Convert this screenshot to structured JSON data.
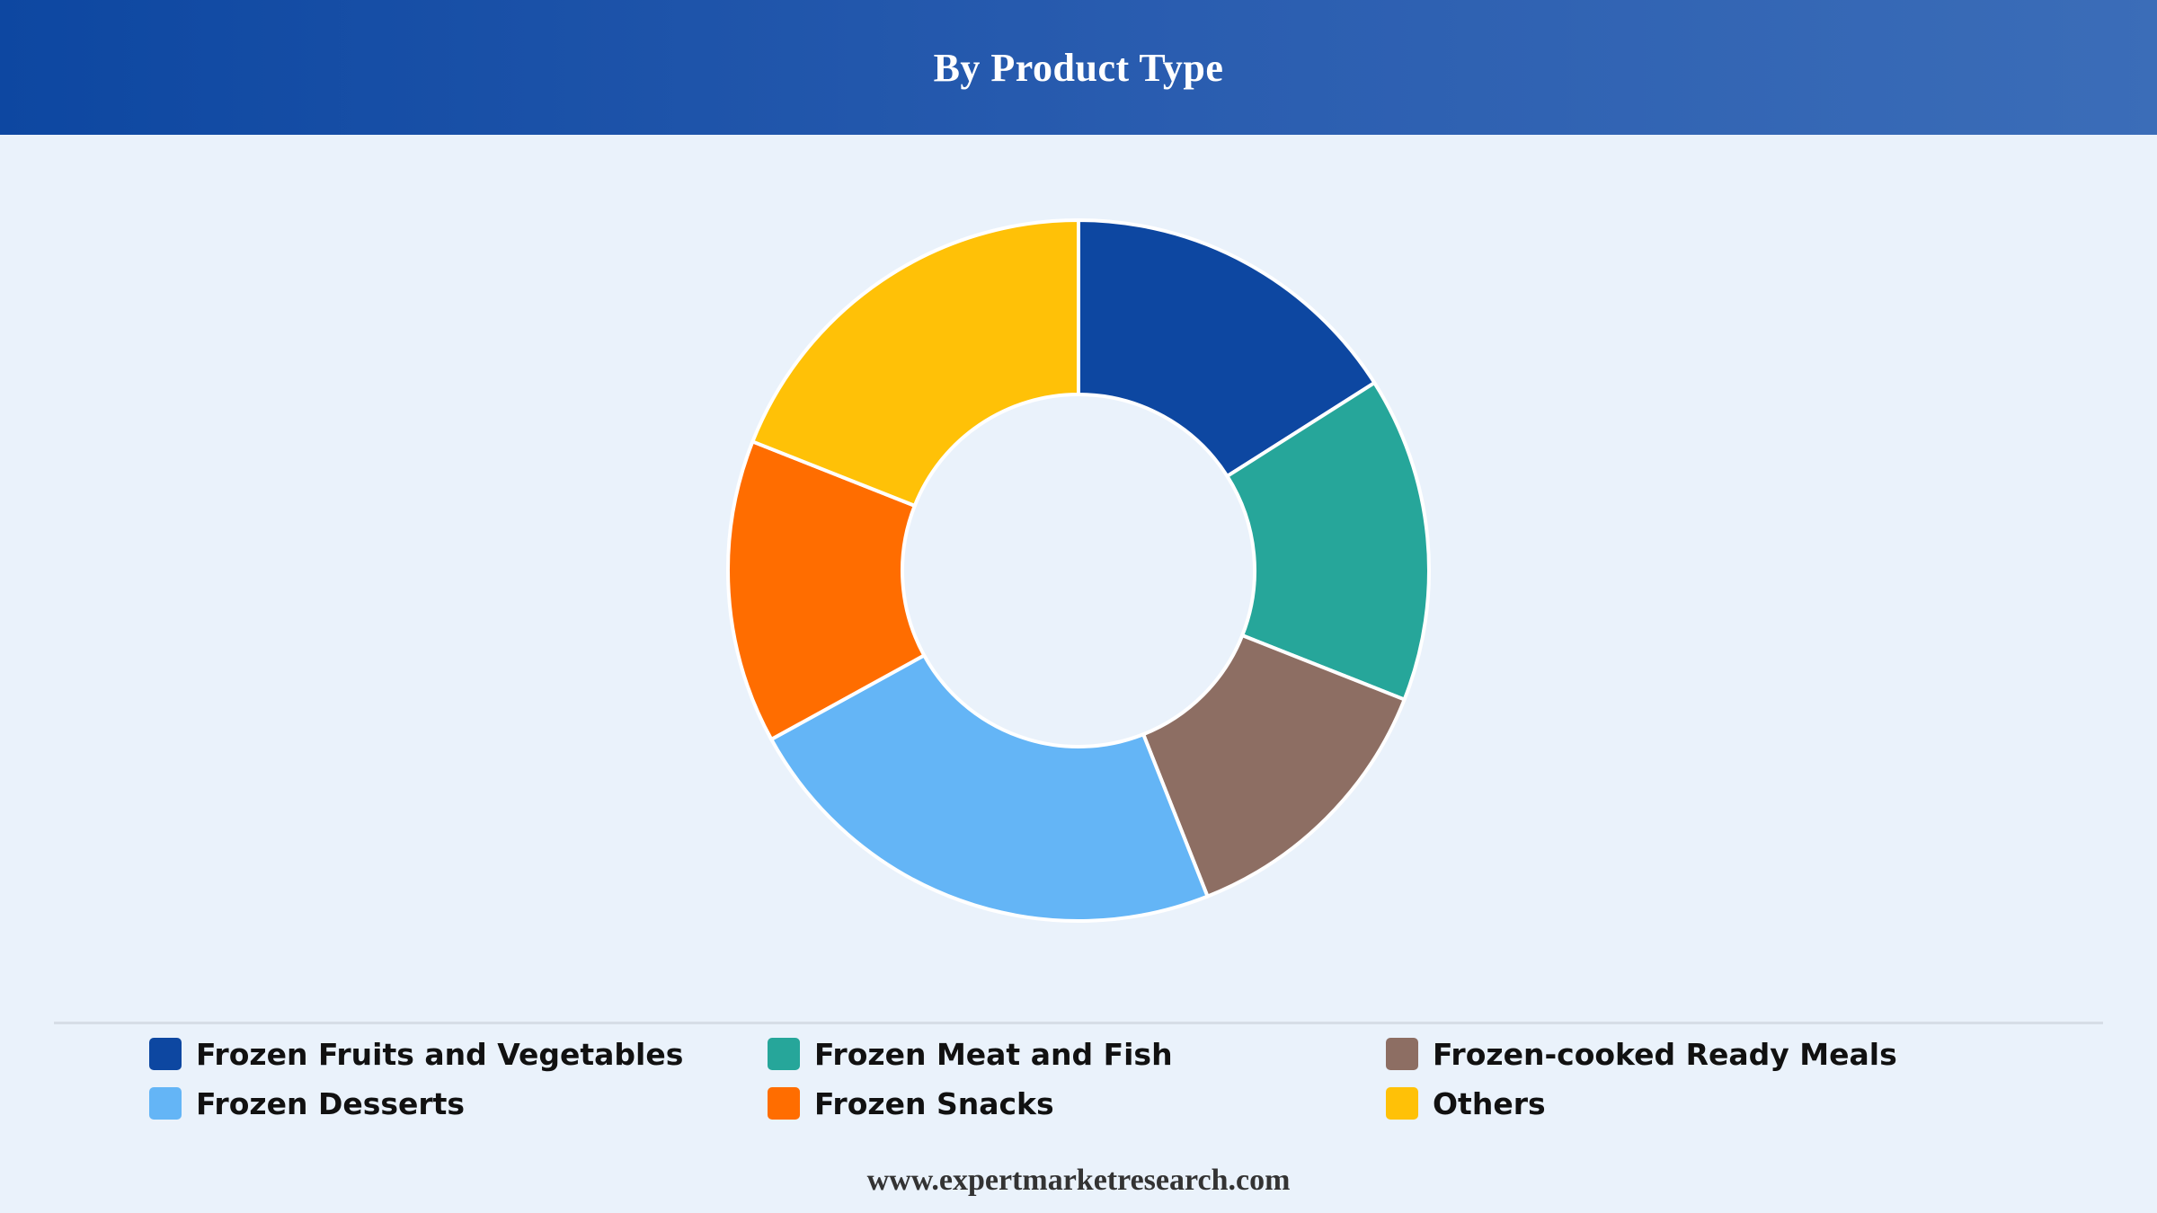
{
  "header": {
    "title": "By Product Type"
  },
  "chart_data": {
    "type": "pie",
    "donut": true,
    "title": "By Product Type",
    "categories": [
      "Frozen Fruits and Vegetables",
      "Frozen Meat and Fish",
      "Frozen-cooked Ready Meals",
      "Frozen Desserts",
      "Frozen Snacks",
      "Others"
    ],
    "values": [
      16,
      15,
      13,
      23,
      14,
      19
    ],
    "colors": [
      "#0d47a1",
      "#26a69a",
      "#8d6e63",
      "#64b5f6",
      "#ff6d00",
      "#ffc107"
    ],
    "legend_position": "bottom"
  },
  "legend": {
    "items": [
      {
        "label": "Frozen Fruits and Vegetables",
        "color": "#0d47a1"
      },
      {
        "label": "Frozen Meat and Fish",
        "color": "#26a69a"
      },
      {
        "label": "Frozen-cooked Ready Meals",
        "color": "#8d6e63"
      },
      {
        "label": "Frozen Desserts",
        "color": "#64b5f6"
      },
      {
        "label": "Frozen Snacks",
        "color": "#ff6d00"
      },
      {
        "label": "Others",
        "color": "#ffc107"
      }
    ]
  },
  "footer": {
    "source": "www.expertmarketresearch.com"
  }
}
